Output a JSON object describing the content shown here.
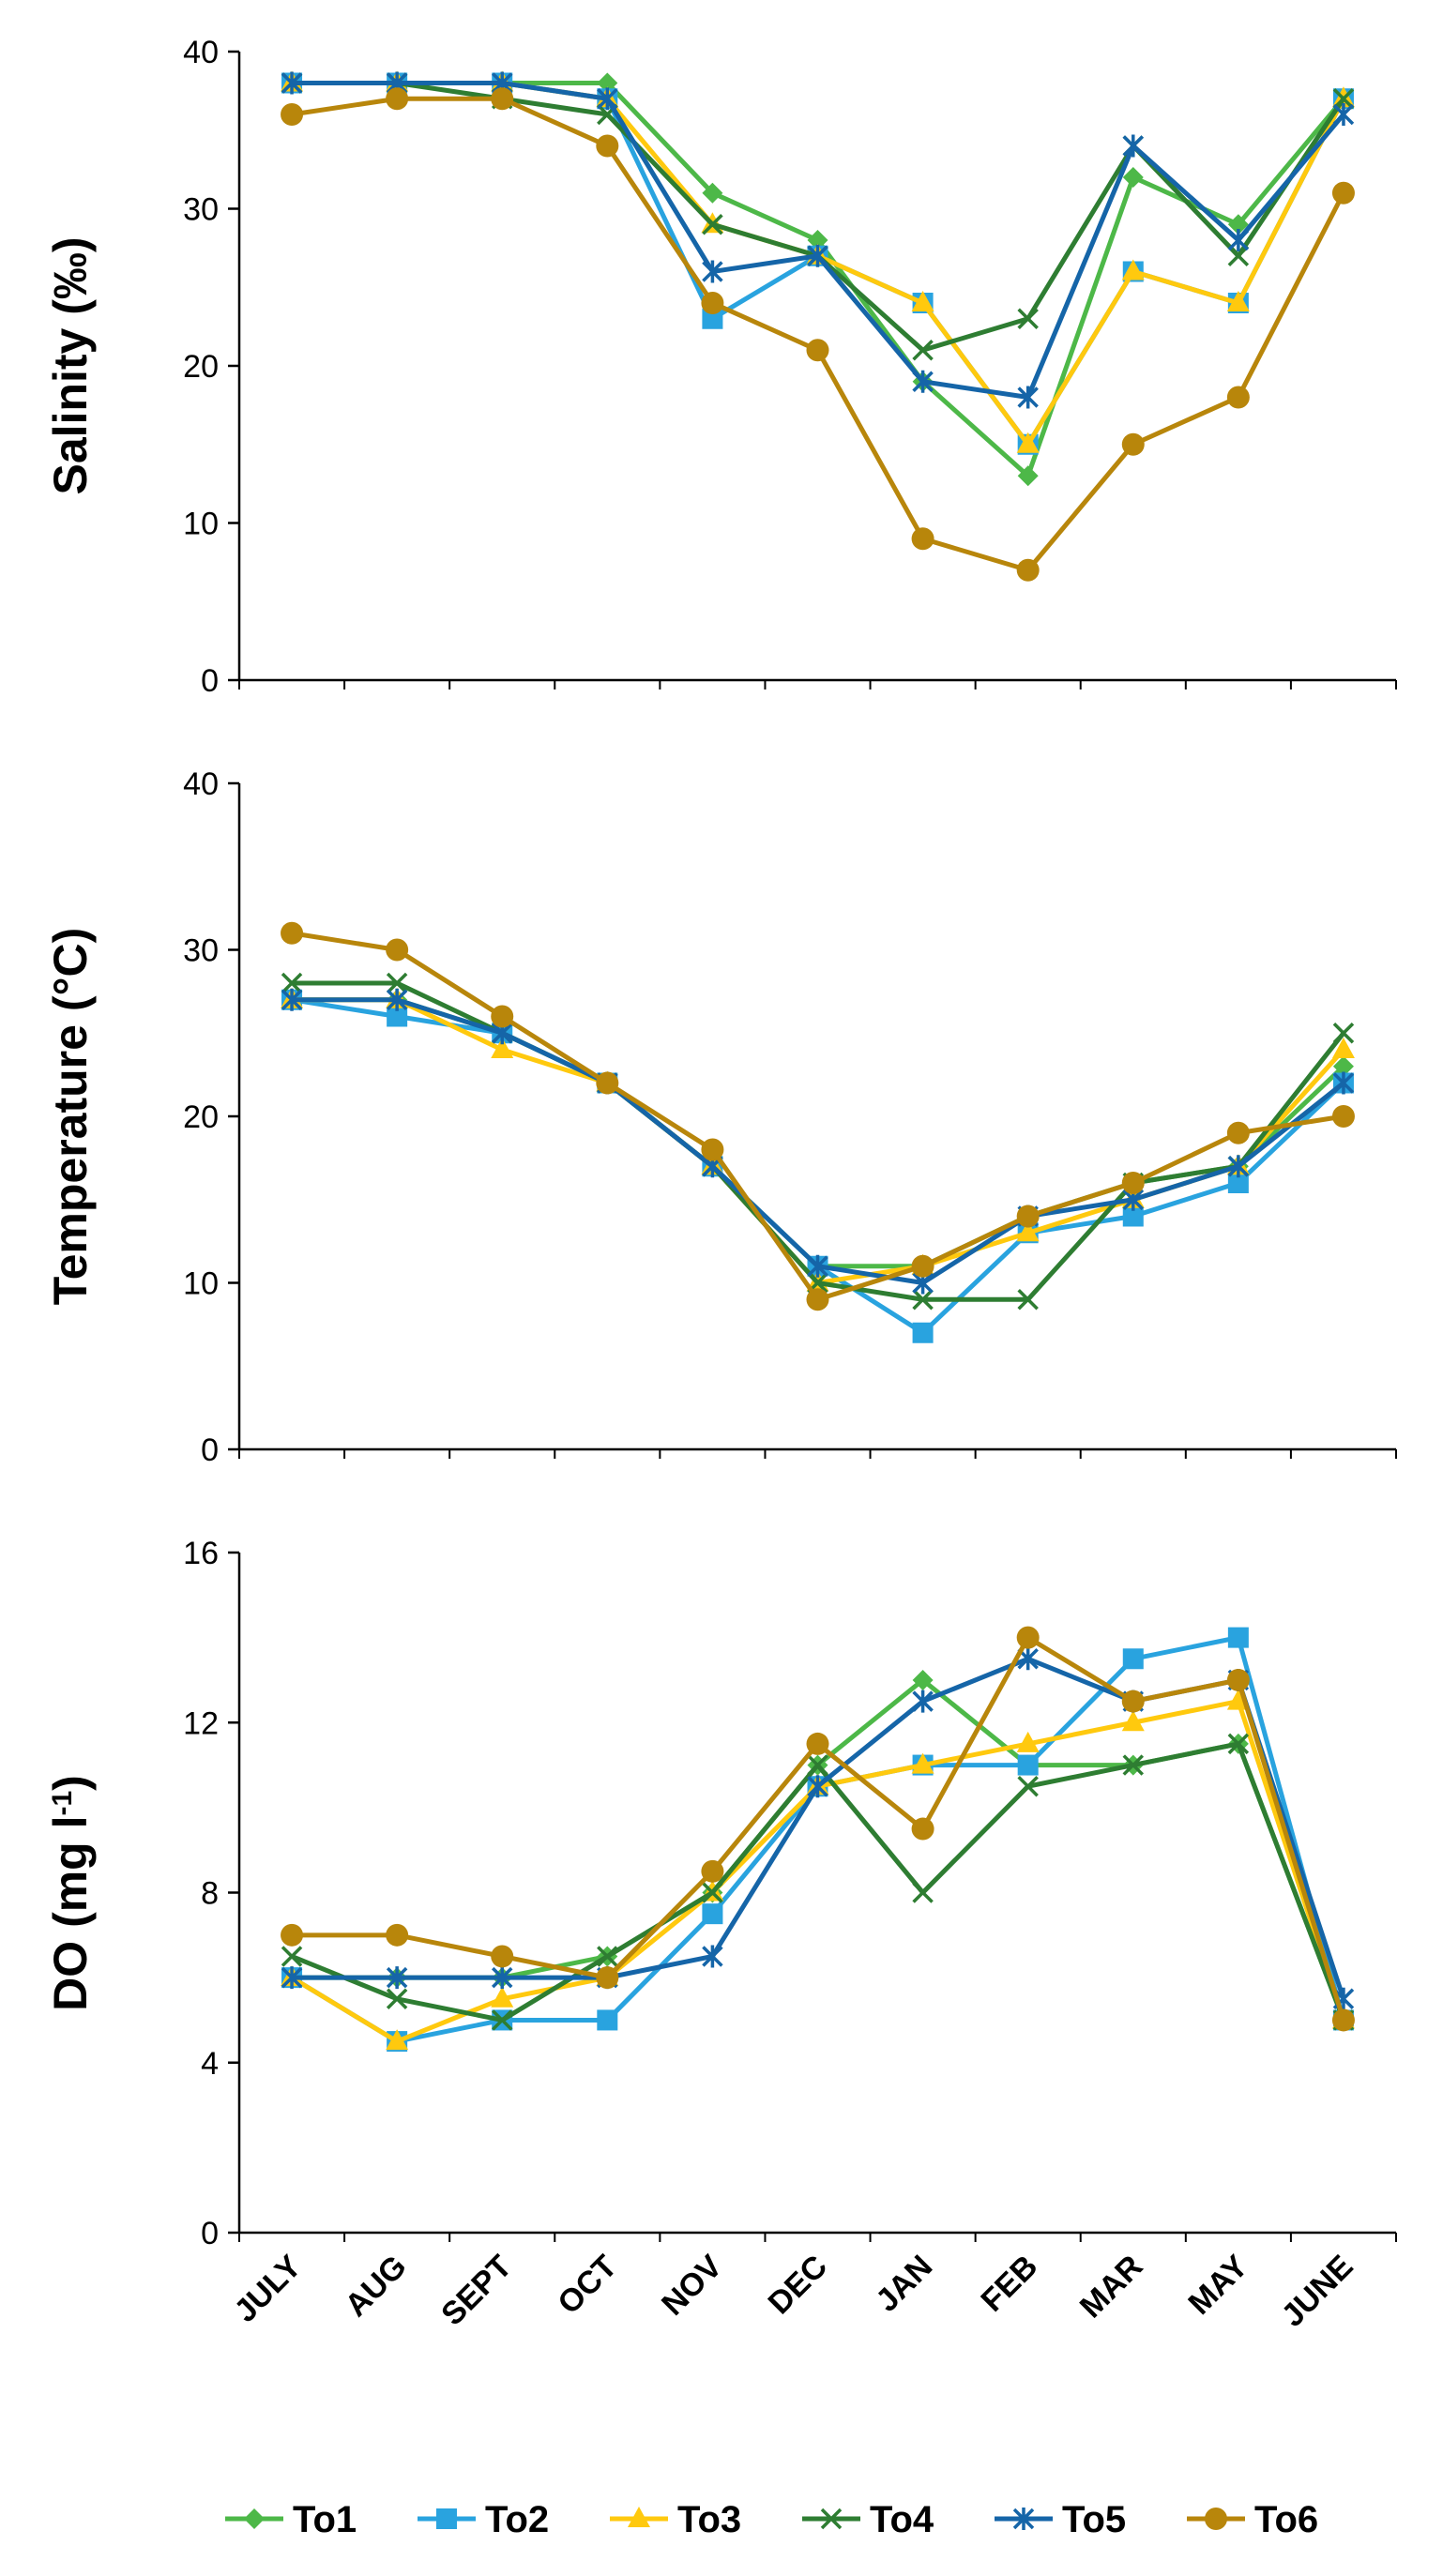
{
  "chart_data": [
    {
      "type": "line",
      "ylabel": "Salinity (‰)",
      "ylim": [
        0,
        40
      ],
      "yticks": [
        0,
        10,
        20,
        30,
        40
      ],
      "categories": [
        "JULY",
        "AUG",
        "SEPT",
        "OCT",
        "NOV",
        "DEC",
        "JAN",
        "FEB",
        "MAR",
        "MAY",
        "JUNE"
      ],
      "series": [
        {
          "name": "To1",
          "values": [
            38,
            38,
            38,
            38,
            31,
            28,
            19,
            13,
            32,
            29,
            37
          ]
        },
        {
          "name": "To2",
          "values": [
            38,
            38,
            38,
            37,
            23,
            27,
            24,
            15,
            26,
            24,
            37
          ]
        },
        {
          "name": "To3",
          "values": [
            38,
            38,
            38,
            37,
            29,
            27,
            24,
            15,
            26,
            24,
            37
          ]
        },
        {
          "name": "To4",
          "values": [
            38,
            38,
            37,
            36,
            29,
            27,
            21,
            23,
            34,
            27,
            37
          ]
        },
        {
          "name": "To5",
          "values": [
            38,
            38,
            38,
            37,
            26,
            27,
            19,
            18,
            34,
            28,
            36
          ]
        },
        {
          "name": "To6",
          "values": [
            36,
            37,
            37,
            34,
            24,
            21,
            9,
            7,
            15,
            18,
            31
          ]
        }
      ]
    },
    {
      "type": "line",
      "ylabel": "Temperature (°C)",
      "ylim": [
        0,
        40
      ],
      "yticks": [
        0,
        10,
        20,
        30,
        40
      ],
      "categories": [
        "JULY",
        "AUG",
        "SEPT",
        "OCT",
        "NOV",
        "DEC",
        "JAN",
        "FEB",
        "MAR",
        "MAY",
        "JUNE"
      ],
      "series": [
        {
          "name": "To1",
          "values": [
            27,
            27,
            25,
            22,
            17,
            11,
            11,
            14,
            16,
            17,
            23
          ]
        },
        {
          "name": "To2",
          "values": [
            27,
            26,
            25,
            22,
            17,
            11,
            7,
            13,
            14,
            16,
            22
          ]
        },
        {
          "name": "To3",
          "values": [
            27,
            27,
            24,
            22,
            17,
            10,
            11,
            13,
            15,
            17,
            24
          ]
        },
        {
          "name": "To4",
          "values": [
            28,
            28,
            25,
            22,
            17,
            10,
            9,
            9,
            16,
            17,
            25
          ]
        },
        {
          "name": "To5",
          "values": [
            27,
            27,
            25,
            22,
            17,
            11,
            10,
            14,
            15,
            17,
            22
          ]
        },
        {
          "name": "To6",
          "values": [
            31,
            30,
            26,
            22,
            18,
            9,
            11,
            14,
            16,
            19,
            20
          ]
        }
      ]
    },
    {
      "type": "line",
      "ylabel": "DO (mg l",
      "ylabel_sup": "-1",
      "ylabel_end": ")",
      "ylim": [
        0,
        16
      ],
      "yticks": [
        0,
        4,
        8,
        12,
        16
      ],
      "categories": [
        "JULY",
        "AUG",
        "SEPT",
        "OCT",
        "NOV",
        "DEC",
        "JAN",
        "FEB",
        "MAR",
        "MAY",
        "JUNE"
      ],
      "series": [
        {
          "name": "To1",
          "values": [
            6,
            6,
            6,
            6.5,
            8,
            11,
            13,
            11,
            11,
            11.5,
            5
          ]
        },
        {
          "name": "To2",
          "values": [
            6,
            4.5,
            5,
            5,
            7.5,
            10.5,
            11,
            11,
            13.5,
            14,
            5
          ]
        },
        {
          "name": "To3",
          "values": [
            6,
            4.5,
            5.5,
            6,
            8,
            10.5,
            11,
            11.5,
            12,
            12.5,
            5
          ]
        },
        {
          "name": "To4",
          "values": [
            6.5,
            5.5,
            5,
            6.5,
            8,
            11,
            8,
            10.5,
            11,
            11.5,
            5
          ]
        },
        {
          "name": "To5",
          "values": [
            6,
            6,
            6,
            6,
            6.5,
            10.5,
            12.5,
            13.5,
            12.5,
            13,
            5.5
          ]
        },
        {
          "name": "To6",
          "values": [
            7,
            7,
            6.5,
            6,
            8.5,
            11.5,
            9.5,
            14,
            12.5,
            13,
            5
          ]
        }
      ]
    }
  ],
  "legend": [
    {
      "name": "To1",
      "color": "#4DB848",
      "marker": "diamond"
    },
    {
      "name": "To2",
      "color": "#29A3DF",
      "marker": "square"
    },
    {
      "name": "To3",
      "color": "#FFC90E",
      "marker": "triangle"
    },
    {
      "name": "To4",
      "color": "#2E7D32",
      "marker": "x"
    },
    {
      "name": "To5",
      "color": "#1565A8",
      "marker": "star"
    },
    {
      "name": "To6",
      "color": "#B8860B",
      "marker": "circle"
    }
  ]
}
